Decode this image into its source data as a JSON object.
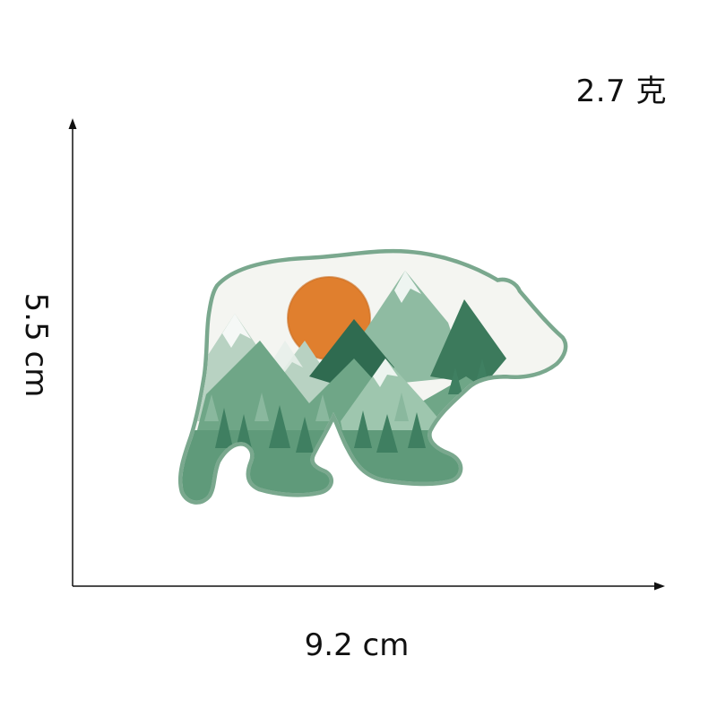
{
  "product_image": {
    "weight": "2.7 克",
    "height": "5.5 cm",
    "width": "9.2 cm",
    "subject_icon": "bear-mountain-patch-icon",
    "colors": {
      "outline_green": "#7aa88e",
      "light_green": "#a9c9b6",
      "mid_green": "#5f9a7a",
      "dark_green": "#2f6b50",
      "white_snow": "#f2f4f0",
      "sun_orange": "#e07f2e",
      "axis": "#111111"
    }
  }
}
